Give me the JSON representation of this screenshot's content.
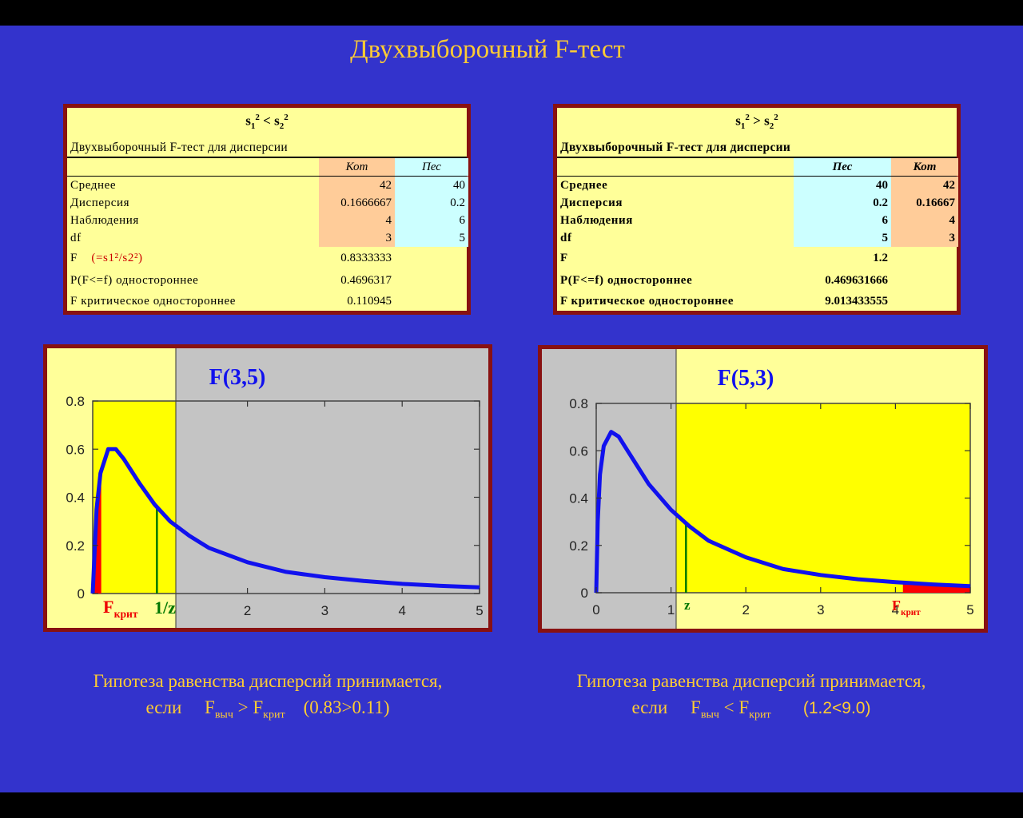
{
  "title": "Двухвыборочный F-тест",
  "left_table": {
    "header_a": "s",
    "header_sub1": "1",
    "header_sup1": "2",
    "header_op": "<",
    "header_b": "s",
    "header_sub2": "2",
    "header_sup2": "2",
    "caption": "Двухвыборочный F-тест для дисперсии",
    "col1": "Кот",
    "col2": "Пес",
    "rows": [
      {
        "label": "Среднее",
        "v1": "42",
        "v2": "40"
      },
      {
        "label": "Дисперсия",
        "v1": "0.1666667",
        "v2": "0.2"
      },
      {
        "label": "Наблюдения",
        "v1": "4",
        "v2": "6"
      },
      {
        "label": "df",
        "v1": "3",
        "v2": "5"
      }
    ],
    "f_label": "F",
    "f_formula": "(=s1²/s2²)",
    "f_value": "0.8333333",
    "p_label": "P(F<=f) одностороннее",
    "p_value": "0.4696317",
    "fcrit_label": "F критическое одностороннее",
    "fcrit_value": "0.110945"
  },
  "right_table": {
    "header_a": "s",
    "header_sub1": "1",
    "header_sup1": "2",
    "header_op": ">",
    "header_b": "s",
    "header_sub2": "2",
    "header_sup2": "2",
    "caption": "Двухвыборочный F-тест для дисперсии",
    "col1": "Пес",
    "col2": "Кот",
    "rows": [
      {
        "label": "Среднее",
        "v1": "40",
        "v2": "42"
      },
      {
        "label": "Дисперсия",
        "v1": "0.2",
        "v2": "0.16667"
      },
      {
        "label": "Наблюдения",
        "v1": "6",
        "v2": "4"
      },
      {
        "label": "df",
        "v1": "5",
        "v2": "3"
      }
    ],
    "f_label": "F",
    "f_value": "1.2",
    "p_label": "P(F<=f) одностороннее",
    "p_value": "0.469631666",
    "fcrit_label": "F критическое одностороннее",
    "fcrit_value": "9.013433555"
  },
  "chart_data": [
    {
      "type": "line",
      "title": "F(3,5)",
      "series": [
        {
          "name": "",
          "x": [
            0,
            0.05,
            0.1,
            0.2,
            0.3,
            0.4,
            0.5,
            0.6,
            0.8,
            1.0,
            1.25,
            1.5,
            2,
            2.5,
            3,
            3.5,
            4,
            4.5,
            5
          ],
          "y": [
            0,
            0.35,
            0.5,
            0.6,
            0.6,
            0.56,
            0.51,
            0.46,
            0.37,
            0.3,
            0.24,
            0.19,
            0.13,
            0.09,
            0.068,
            0.052,
            0.04,
            0.032,
            0.026
          ]
        }
      ],
      "xlim": [
        0,
        5
      ],
      "ylim": [
        0,
        0.8
      ],
      "xticks": [
        "2",
        "3",
        "4",
        "5"
      ],
      "yticks": [
        "0",
        "0.2",
        "0.4",
        "0.6",
        "0.8"
      ],
      "annot_fcrit": "F",
      "annot_fcrit_sub": "крит",
      "annot_z": "1/z",
      "fcrit_x": 0.11,
      "z_x": 0.83,
      "accept_to_x": 1.2
    },
    {
      "type": "line",
      "title": "F(5,3)",
      "series": [
        {
          "name": "",
          "x": [
            0,
            0.02,
            0.05,
            0.1,
            0.2,
            0.3,
            0.4,
            0.5,
            0.7,
            1.0,
            1.25,
            1.5,
            2,
            2.5,
            3,
            3.5,
            4,
            4.5,
            5
          ],
          "y": [
            0,
            0.3,
            0.5,
            0.62,
            0.68,
            0.66,
            0.61,
            0.56,
            0.46,
            0.35,
            0.28,
            0.22,
            0.15,
            0.1,
            0.075,
            0.057,
            0.045,
            0.035,
            0.028
          ]
        }
      ],
      "xlim": [
        0,
        5
      ],
      "ylim": [
        0,
        0.8
      ],
      "xticks": [
        "0",
        "1",
        "2",
        "3",
        "4",
        "5"
      ],
      "yticks": [
        "0",
        "0.2",
        "0.4",
        "0.6",
        "0.8"
      ],
      "annot_fcrit": "F",
      "annot_fcrit_sub": "крит",
      "annot_z": "z",
      "fcrit_x": 4.1,
      "z_x": 1.2,
      "shade_from_x": 1.0
    }
  ],
  "footer_left": {
    "line1": "Гипотеза равенства дисперсий принимается,",
    "if": "если",
    "f": "F",
    "sub_vych": "выч",
    "op": ">",
    "sub_krit": "крит",
    "cmp": "(0.83>0.11)"
  },
  "footer_right": {
    "line1": "Гипотеза равенства дисперсий принимается,",
    "if": "если",
    "f": "F",
    "sub_vych": "выч",
    "op": "<",
    "sub_krit": "крит",
    "cmp": "(1.2<9.0)"
  }
}
